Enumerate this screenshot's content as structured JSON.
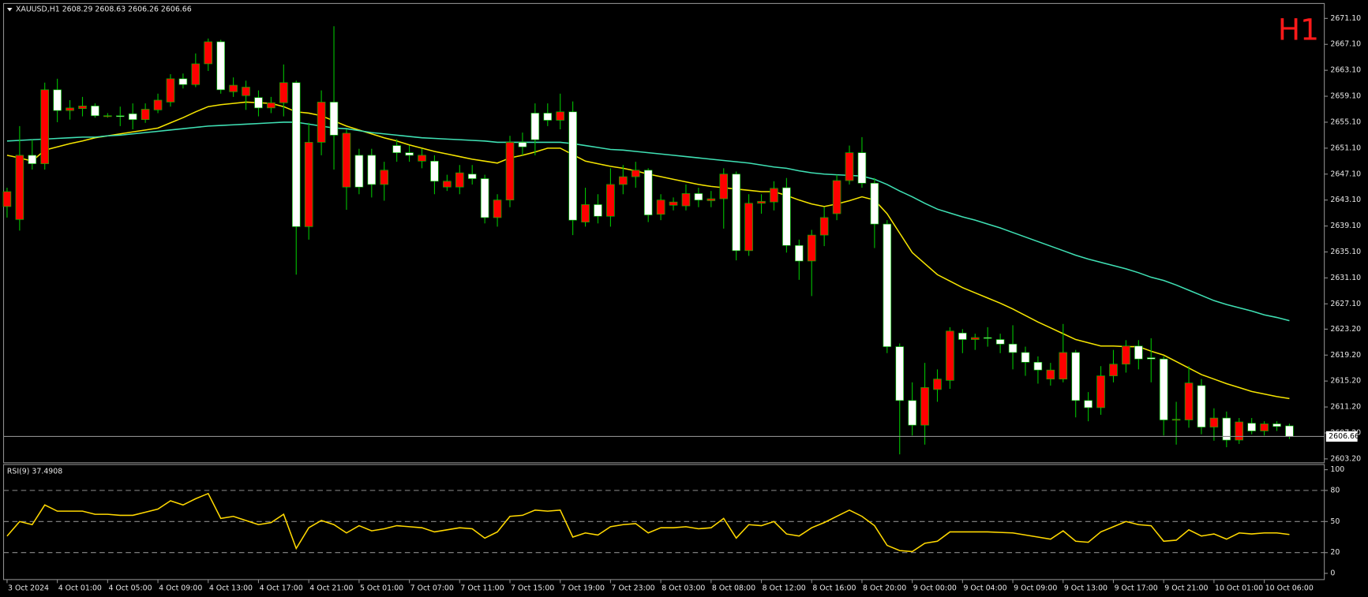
{
  "chart_data": [
    {
      "type": "candlestick",
      "title": "XAUUSD,H1  2608.29 2608.63 2606.26 2606.66",
      "timeframe_label": "H1",
      "categories": [
        "3 Oct 2024",
        null,
        null,
        null,
        "4 Oct 01:00",
        null,
        null,
        null,
        "4 Oct 05:00",
        null,
        null,
        null,
        "4 Oct 09:00",
        null,
        null,
        null,
        "4 Oct 13:00",
        null,
        null,
        null,
        "4 Oct 17:00",
        null,
        null,
        null,
        "4 Oct 21:00",
        null,
        null,
        null,
        "5 Oct 01:00",
        null,
        null,
        null,
        "7 Oct 07:00",
        null,
        null,
        null,
        "7 Oct 11:00",
        null,
        null,
        null,
        "7 Oct 15:00",
        null,
        null,
        null,
        "7 Oct 19:00",
        null,
        null,
        null,
        "7 Oct 23:00",
        null,
        null,
        null,
        "8 Oct 03:00",
        null,
        null,
        null,
        "8 Oct 08:00",
        null,
        null,
        null,
        "8 Oct 12:00",
        null,
        null,
        null,
        "8 Oct 16:00",
        null,
        null,
        null,
        "8 Oct 20:00",
        null,
        null,
        null,
        "9 Oct 00:00",
        null,
        null,
        null,
        "9 Oct 04:00",
        null,
        null,
        null,
        "9 Oct 09:00",
        null,
        null,
        null,
        "9 Oct 13:00",
        null,
        null,
        null,
        "9 Oct 17:00",
        null,
        null,
        null,
        "9 Oct 21:00",
        null,
        null,
        null,
        "10 Oct 01:00",
        null,
        null,
        null,
        "10 Oct 06:00",
        null,
        null
      ],
      "open": [
        2642.1,
        2640.1,
        2650.0,
        2648.7,
        2660.1,
        2656.9,
        2657.2,
        2657.6,
        2656.0,
        2656.1,
        2656.4,
        2655.5,
        2657.0,
        2658.2,
        2661.8,
        2660.9,
        2664.1,
        2667.5,
        2659.8,
        2659.2,
        2658.9,
        2657.3,
        2658.1,
        2661.2,
        2639.0,
        2652.0,
        2658.2,
        2645.1,
        2650.0,
        2650.0,
        2645.5,
        2651.5,
        2650.4,
        2649.1,
        2649.1,
        2645.1,
        2645.1,
        2647.1,
        2646.4,
        2640.4,
        2643.1,
        2652.0,
        2656.5,
        2656.5,
        2655.4,
        2656.7,
        2639.7,
        2642.4,
        2640.6,
        2645.5,
        2646.7,
        2647.7,
        2640.9,
        2642.3,
        2642.2,
        2644.1,
        2643.0,
        2643.3,
        2647.1,
        2635.3,
        2642.6,
        2642.8,
        2645.0,
        2636.1,
        2633.7,
        2637.7,
        2641.0,
        2646.1,
        2650.4,
        2645.7,
        2639.4,
        2620.5,
        2612.2,
        2608.4,
        2613.9,
        2615.3,
        2622.6,
        2621.6,
        2621.9,
        2621.6,
        2620.9,
        2619.6,
        2618.1,
        2615.5,
        2615.5,
        2619.6,
        2612.2,
        2611.1,
        2616.0,
        2617.8,
        2620.6,
        2618.8,
        2618.6,
        2609.2,
        2609.2,
        2614.5,
        2608.1,
        2609.5,
        2606.1,
        2608.7,
        2607.5,
        2608.6,
        2608.29
      ],
      "high": [
        2645.0,
        2654.5,
        2652.4,
        2661.2,
        2661.8,
        2658.5,
        2659.0,
        2658.0,
        2656.5,
        2657.5,
        2658.0,
        2658.0,
        2659.5,
        2662.5,
        2662.6,
        2665.7,
        2668.0,
        2667.8,
        2662.0,
        2661.5,
        2660.0,
        2659.0,
        2664.0,
        2661.5,
        2655.0,
        2660.0,
        2669.9,
        2654.0,
        2651.0,
        2651.0,
        2649.0,
        2652.5,
        2651.5,
        2651.0,
        2650.0,
        2647.0,
        2648.5,
        2648.5,
        2647.0,
        2644.0,
        2653.0,
        2653.5,
        2658.0,
        2658.0,
        2659.5,
        2658.3,
        2645.0,
        2644.0,
        2648.0,
        2648.5,
        2649.0,
        2648.0,
        2644.0,
        2643.5,
        2645.5,
        2645.0,
        2644.5,
        2648.0,
        2647.5,
        2644.0,
        2644.0,
        2646.0,
        2646.5,
        2637.0,
        2638.5,
        2642.0,
        2647.0,
        2651.5,
        2652.8,
        2646.5,
        2640.0,
        2621.0,
        2615.0,
        2618.0,
        2617.0,
        2623.5,
        2623.2,
        2622.5,
        2623.5,
        2622.5,
        2623.8,
        2620.5,
        2619.0,
        2618.0,
        2624.0,
        2620.0,
        2613.5,
        2617.5,
        2620.0,
        2621.5,
        2621.5,
        2621.8,
        2619.0,
        2612.0,
        2617.5,
        2615.5,
        2611.0,
        2610.5,
        2609.5,
        2609.5,
        2609.0,
        2609.0,
        2608.63
      ],
      "low": [
        2640.4,
        2638.4,
        2647.8,
        2647.8,
        2655.1,
        2655.5,
        2656.0,
        2655.8,
        2655.8,
        2654.5,
        2654.0,
        2655.0,
        2656.5,
        2657.5,
        2660.3,
        2660.5,
        2663.0,
        2659.5,
        2659.0,
        2657.0,
        2656.0,
        2656.5,
        2656.0,
        2631.6,
        2637.0,
        2650.0,
        2647.8,
        2641.6,
        2644.0,
        2643.5,
        2643.0,
        2649.0,
        2649.0,
        2648.0,
        2644.0,
        2644.5,
        2644.0,
        2645.5,
        2639.5,
        2639.0,
        2642.0,
        2650.0,
        2650.0,
        2654.5,
        2654.0,
        2637.7,
        2639.0,
        2639.5,
        2639.0,
        2644.0,
        2645.0,
        2639.7,
        2640.0,
        2641.5,
        2641.5,
        2642.0,
        2642.0,
        2638.7,
        2633.8,
        2634.5,
        2641.0,
        2641.5,
        2635.0,
        2630.8,
        2628.3,
        2636.0,
        2640.0,
        2645.5,
        2645.0,
        2635.7,
        2619.5,
        2603.9,
        2606.8,
        2605.4,
        2612.0,
        2614.0,
        2619.5,
        2620.0,
        2620.5,
        2619.5,
        2617.0,
        2616.0,
        2614.8,
        2614.5,
        2615.0,
        2609.6,
        2609.0,
        2610.0,
        2615.0,
        2616.5,
        2617.0,
        2615.0,
        2606.8,
        2605.4,
        2608.0,
        2607.0,
        2606.0,
        2605.0,
        2605.5,
        2607.0,
        2606.8,
        2607.5,
        2606.26
      ],
      "close": [
        2644.4,
        2650.0,
        2648.7,
        2660.1,
        2656.9,
        2657.3,
        2657.6,
        2656.1,
        2656.1,
        2656.0,
        2655.5,
        2657.1,
        2658.5,
        2661.8,
        2660.9,
        2664.1,
        2667.5,
        2660.1,
        2660.8,
        2660.5,
        2657.3,
        2658.1,
        2661.2,
        2639.0,
        2652.0,
        2658.2,
        2653.1,
        2653.4,
        2645.1,
        2645.5,
        2647.7,
        2650.4,
        2650.0,
        2650.0,
        2646.0,
        2646.0,
        2647.3,
        2646.4,
        2640.4,
        2643.1,
        2652.0,
        2651.3,
        2652.4,
        2655.4,
        2656.7,
        2640.0,
        2642.4,
        2640.6,
        2645.5,
        2646.7,
        2647.7,
        2640.8,
        2643.1,
        2642.8,
        2644.1,
        2643.1,
        2643.3,
        2647.1,
        2635.3,
        2642.6,
        2642.9,
        2644.9,
        2636.1,
        2633.7,
        2637.7,
        2640.4,
        2646.1,
        2650.4,
        2645.7,
        2639.4,
        2620.5,
        2612.2,
        2608.4,
        2614.2,
        2615.5,
        2622.9,
        2621.6,
        2621.9,
        2621.8,
        2620.9,
        2619.6,
        2618.1,
        2616.9,
        2616.9,
        2619.6,
        2612.2,
        2611.1,
        2616.0,
        2617.8,
        2620.6,
        2618.6,
        2618.6,
        2609.2,
        2609.3,
        2614.9,
        2608.1,
        2609.5,
        2606.1,
        2608.9,
        2607.5,
        2608.6,
        2608.2,
        2606.66
      ],
      "up_color": "#ff0000",
      "down_color": "#ffffff",
      "wick_color": "#00c000",
      "series": [
        {
          "color": "#f5e400",
          "values": [
            2650.0,
            2649.6,
            2649.1,
            2650.8,
            2651.3,
            2651.8,
            2652.2,
            2652.7,
            2653.0,
            2653.3,
            2653.6,
            2653.9,
            2654.2,
            2655.0,
            2655.8,
            2656.7,
            2657.5,
            2657.8,
            2658.0,
            2658.2,
            2658.1,
            2658.0,
            2657.5,
            2656.7,
            2656.5,
            2656.1,
            2655.3,
            2654.5,
            2653.9,
            2653.3,
            2652.7,
            2652.2,
            2651.6,
            2651.1,
            2650.6,
            2650.2,
            2649.8,
            2649.4,
            2649.1,
            2648.8,
            2649.6,
            2650.0,
            2650.5,
            2651.1,
            2651.1,
            2650.1,
            2649.1,
            2648.7,
            2648.3,
            2648.0,
            2647.6,
            2647.1,
            2646.7,
            2646.3,
            2645.9,
            2645.5,
            2645.2,
            2645.0,
            2644.8,
            2644.6,
            2644.4,
            2644.4,
            2643.8,
            2643.1,
            2642.5,
            2642.1,
            2642.5,
            2643.0,
            2643.6,
            2643.1,
            2641.0,
            2638.0,
            2635.0,
            2633.3,
            2631.6,
            2630.6,
            2629.6,
            2628.8,
            2628.0,
            2627.2,
            2626.3,
            2625.3,
            2624.3,
            2623.4,
            2622.5,
            2621.6,
            2621.1,
            2620.6,
            2620.6,
            2620.5,
            2620.5,
            2619.8,
            2619.2,
            2618.2,
            2617.2,
            2616.2,
            2615.5,
            2614.8,
            2614.2,
            2613.6,
            2613.2,
            2612.8,
            2612.5
          ]
        },
        {
          "color": "#3fe0b4",
          "values": [
            2652.2,
            2652.3,
            2652.4,
            2652.5,
            2652.6,
            2652.7,
            2652.8,
            2652.8,
            2653.0,
            2653.1,
            2653.3,
            2653.5,
            2653.7,
            2653.9,
            2654.1,
            2654.3,
            2654.5,
            2654.6,
            2654.7,
            2654.8,
            2654.9,
            2655.0,
            2655.1,
            2655.1,
            2654.8,
            2654.5,
            2654.2,
            2654.1,
            2653.8,
            2653.5,
            2653.3,
            2653.1,
            2652.9,
            2652.7,
            2652.6,
            2652.5,
            2652.4,
            2652.3,
            2652.2,
            2652.0,
            2652.0,
            2652.0,
            2652.0,
            2652.0,
            2652.0,
            2651.8,
            2651.5,
            2651.2,
            2650.9,
            2650.8,
            2650.6,
            2650.4,
            2650.2,
            2650.0,
            2649.8,
            2649.6,
            2649.4,
            2649.2,
            2649.0,
            2648.8,
            2648.5,
            2648.2,
            2648.0,
            2647.6,
            2647.3,
            2647.1,
            2647.0,
            2646.9,
            2646.8,
            2646.3,
            2645.5,
            2644.5,
            2643.6,
            2642.6,
            2641.7,
            2641.1,
            2640.5,
            2640.0,
            2639.4,
            2638.8,
            2638.1,
            2637.4,
            2636.7,
            2636.0,
            2635.3,
            2634.6,
            2634.0,
            2633.5,
            2633.0,
            2632.5,
            2631.9,
            2631.2,
            2630.7,
            2630.0,
            2629.2,
            2628.4,
            2627.6,
            2627.0,
            2626.5,
            2626.0,
            2625.4,
            2625.0,
            2624.5
          ]
        }
      ],
      "last_price": 2606.66,
      "ylim": [
        2602.6,
        2673.4
      ],
      "yticks": [
        {
          "value": 2603.2,
          "label": "2603.20"
        },
        {
          "value": 2607.2,
          "label": "2607.20"
        },
        {
          "value": 2611.2,
          "label": "2611.20"
        },
        {
          "value": 2615.2,
          "label": "2615.20"
        },
        {
          "value": 2619.2,
          "label": "2619.20"
        },
        {
          "value": 2623.2,
          "label": "2623.20"
        },
        {
          "value": 2627.1,
          "label": "2627.10"
        },
        {
          "value": 2631.1,
          "label": "2631.10"
        },
        {
          "value": 2635.1,
          "label": "2635.10"
        },
        {
          "value": 2639.1,
          "label": "2639.10"
        },
        {
          "value": 2643.1,
          "label": "2643.10"
        },
        {
          "value": 2647.1,
          "label": "2647.10"
        },
        {
          "value": 2651.1,
          "label": "2651.10"
        },
        {
          "value": 2655.1,
          "label": "2655.10"
        },
        {
          "value": 2659.1,
          "label": "2659.10"
        },
        {
          "value": 2663.1,
          "label": "2663.10"
        },
        {
          "value": 2667.1,
          "label": "2667.10"
        },
        {
          "value": 2671.1,
          "label": "2671.10"
        }
      ]
    },
    {
      "type": "line",
      "title": "RSI(9) 37.4908",
      "color": "#ffd800",
      "values": [
        36,
        50,
        47,
        66,
        60,
        60,
        60,
        57,
        57,
        56,
        56,
        59,
        62,
        70,
        66,
        72,
        77,
        53,
        55,
        51,
        47,
        49,
        57,
        24,
        44,
        51,
        47,
        39,
        46,
        41,
        43,
        46,
        45,
        44,
        40,
        42,
        44,
        43,
        34,
        40,
        55,
        56,
        61,
        60,
        61,
        35,
        39,
        37,
        45,
        47,
        48,
        39,
        44,
        44,
        45,
        43,
        44,
        53,
        34,
        47,
        46,
        50,
        38,
        36,
        44,
        49,
        55,
        61,
        55,
        46,
        27,
        22,
        21,
        29,
        31,
        40,
        40,
        40,
        40,
        39.5,
        39,
        37,
        35,
        33,
        41,
        31,
        30,
        40,
        45,
        50,
        47,
        46,
        31,
        32,
        42,
        36,
        38,
        33,
        39,
        38,
        39,
        39,
        37.4908
      ],
      "ylim": [
        -6,
        105
      ],
      "yticks": [
        0,
        20,
        50,
        80,
        100
      ]
    }
  ]
}
